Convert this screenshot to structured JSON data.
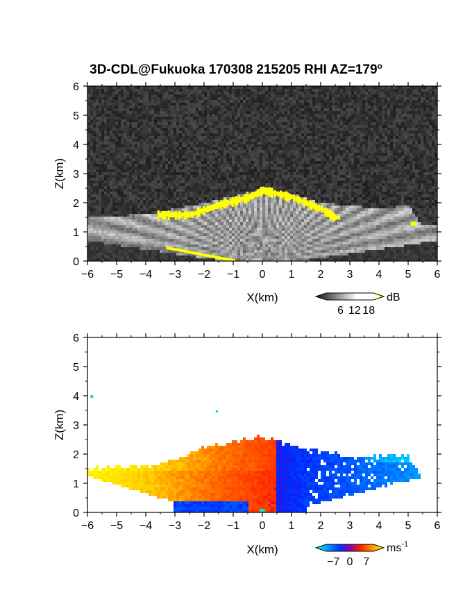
{
  "title_main": "3D-CDL@Fukuoka 170308 215205 RHI AZ=179",
  "title_sup": "o",
  "chart_data": [
    {
      "type": "heatmap",
      "panel": "top",
      "quantity": "backscatter intensity",
      "xlabel": "X(km)",
      "ylabel": "Z(km)",
      "xlim": [
        -6,
        6
      ],
      "ylim": [
        0,
        6
      ],
      "xticks": [
        "-6",
        "-5",
        "-4",
        "-3",
        "-2",
        "-1",
        "0",
        "1",
        "2",
        "3",
        "4",
        "5",
        "6"
      ],
      "yticks": [
        "0",
        "1",
        "2",
        "3",
        "4",
        "5",
        "6"
      ],
      "colorbar": {
        "unit": "dB",
        "ticks": [
          "6",
          "12",
          "18"
        ],
        "range": [
          0,
          20
        ],
        "colors": [
          "#111111",
          "#ffffff",
          "#ffff00"
        ]
      },
      "features": {
        "boundary_layer_top_km": [
          [
            -6,
            1.5
          ],
          [
            -4,
            1.6
          ],
          [
            -3,
            1.8
          ],
          [
            -2,
            2.0
          ],
          [
            -1,
            2.2
          ],
          [
            0,
            2.5
          ],
          [
            1,
            2.3
          ],
          [
            2,
            2.0
          ],
          [
            3,
            1.9
          ],
          [
            4,
            1.8
          ],
          [
            5,
            1.9
          ],
          [
            5.5,
            1.2
          ]
        ],
        "yellow_top_layer_km": [
          [
            -3.5,
            1.6
          ],
          [
            -2.5,
            1.6
          ],
          [
            -1.5,
            1.95
          ],
          [
            -0.5,
            2.2
          ],
          [
            0,
            2.45
          ],
          [
            1,
            2.2
          ],
          [
            2,
            1.8
          ],
          [
            2.5,
            1.5
          ]
        ]
      }
    },
    {
      "type": "heatmap",
      "panel": "bottom",
      "quantity": "radial velocity",
      "xlabel": "X(km)",
      "ylabel": "Z(km)",
      "xlim": [
        -6,
        6
      ],
      "ylim": [
        0,
        6
      ],
      "xticks": [
        "-6",
        "-5",
        "-4",
        "-3",
        "-2",
        "-1",
        "0",
        "1",
        "2",
        "3",
        "4",
        "5",
        "6"
      ],
      "yticks": [
        "0",
        "1",
        "2",
        "3",
        "4",
        "5",
        "6"
      ],
      "colorbar": {
        "unit": "ms",
        "unit_sup": "-1",
        "ticks": [
          "-7",
          "0",
          "7"
        ],
        "range": [
          -10,
          10
        ],
        "colors": [
          "#00ffff",
          "#0033ff",
          "#ff2000",
          "#ffff00"
        ]
      },
      "features": {
        "echo_top_km": [
          [
            -6,
            1.5
          ],
          [
            -4,
            1.6
          ],
          [
            -3,
            1.8
          ],
          [
            -2,
            2.2
          ],
          [
            -1,
            2.4
          ],
          [
            0,
            2.6
          ],
          [
            1,
            2.3
          ],
          [
            2,
            2.1
          ],
          [
            3,
            1.9
          ],
          [
            4,
            1.9
          ],
          [
            5,
            2.0
          ],
          [
            5.5,
            1.2
          ]
        ],
        "velocity_sign_change_x_km": 0.5
      }
    }
  ]
}
